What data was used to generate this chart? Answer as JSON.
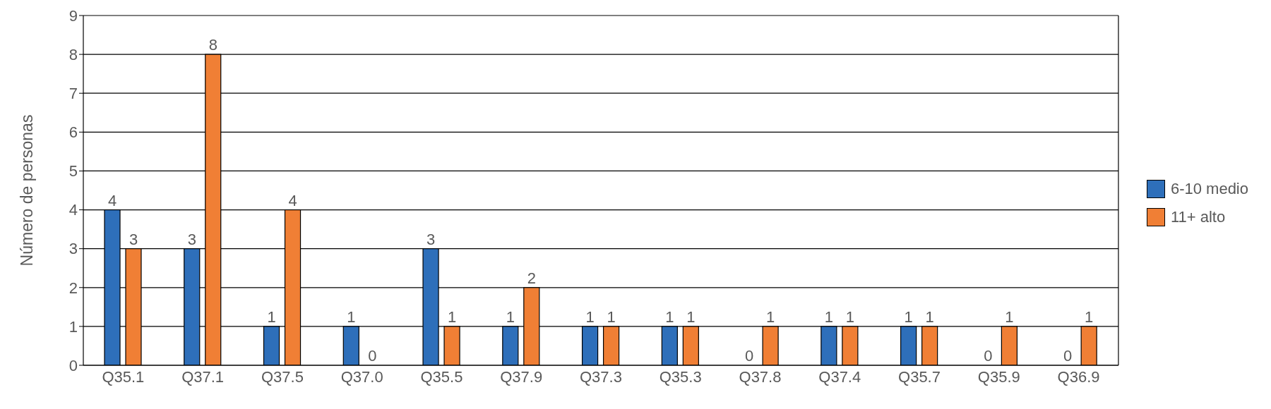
{
  "chart_data": {
    "type": "bar",
    "ylabel": "Número de personas",
    "categories": [
      "Q35.1",
      "Q37.1",
      "Q37.5",
      "Q37.0",
      "Q35.5",
      "Q37.9",
      "Q37.3",
      "Q35.3",
      "Q37.8",
      "Q37.4",
      "Q35.7",
      "Q35.9",
      "Q36.9"
    ],
    "series": [
      {
        "name": "6-10 medio",
        "color": "#2e6fba",
        "values": [
          4,
          3,
          1,
          1,
          3,
          1,
          1,
          1,
          0,
          1,
          1,
          0,
          0
        ]
      },
      {
        "name": "11+ alto",
        "color": "#f07f35",
        "values": [
          3,
          8,
          4,
          0,
          1,
          2,
          1,
          1,
          1,
          1,
          1,
          1,
          1
        ]
      }
    ],
    "ylim": [
      0,
      9
    ],
    "yticks": [
      0,
      1,
      2,
      3,
      4,
      5,
      6,
      7,
      8,
      9
    ],
    "grid": "y",
    "legend": "right",
    "data_labels": true
  }
}
